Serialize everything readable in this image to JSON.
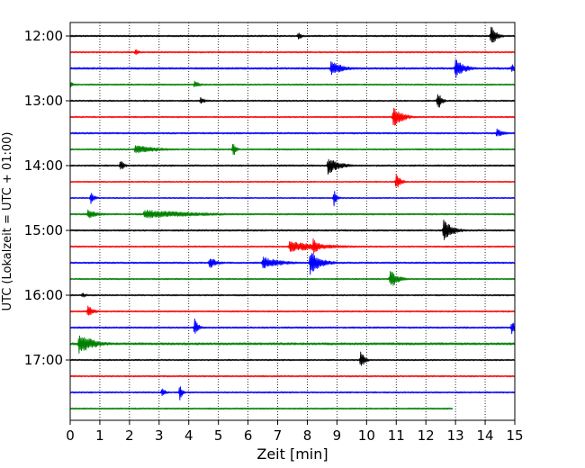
{
  "chart_data": {
    "type": "line",
    "subtype": "helicorder",
    "title": "",
    "xlabel": "Zeit  [min]",
    "ylabel": "UTC (Lokalzeit = UTC + 01:00)",
    "xlim": [
      0,
      15
    ],
    "x_ticks": [
      "0",
      "1",
      "2",
      "3",
      "4",
      "5",
      "6",
      "7",
      "8",
      "9",
      "10",
      "11",
      "12",
      "13",
      "14",
      "15"
    ],
    "y_tick_labels": [
      "12:00",
      "13:00",
      "14:00",
      "15:00",
      "16:00",
      "17:00"
    ],
    "grid": "vertical dotted lines at each minute",
    "line_colors": [
      "#000000",
      "#ff0000",
      "#0000ff",
      "#008000"
    ],
    "trace_start_times": [
      "12:00",
      "12:15",
      "12:30",
      "12:45",
      "13:00",
      "13:15",
      "13:30",
      "13:45",
      "14:00",
      "14:15",
      "14:30",
      "14:45",
      "15:00",
      "15:15",
      "15:30",
      "15:45",
      "16:00",
      "16:15",
      "16:30",
      "16:45",
      "17:00",
      "17:15",
      "17:30",
      "17:45"
    ],
    "trace_end_minutes": [
      15,
      15,
      15,
      15,
      15,
      15,
      15,
      15,
      15,
      15,
      15,
      15,
      15,
      15,
      15,
      15,
      15,
      15,
      15,
      15,
      15,
      15,
      15,
      12.9
    ],
    "noise_amplitude": [
      0.9,
      0.8,
      1.0,
      0.8,
      0.8,
      0.8,
      0.9,
      0.8,
      0.9,
      0.7,
      0.7,
      0.9,
      0.9,
      0.8,
      0.9,
      0.8,
      0.8,
      0.8,
      0.9,
      1.2,
      0.8,
      0.8,
      0.8,
      0.8
    ],
    "events": [
      {
        "trace": 0,
        "minute": 7.7,
        "amplitude": 6,
        "duration": 0.15
      },
      {
        "trace": 0,
        "minute": 14.2,
        "amplitude": 12,
        "duration": 0.3
      },
      {
        "trace": 1,
        "minute": 2.2,
        "amplitude": 4,
        "duration": 0.2
      },
      {
        "trace": 2,
        "minute": 8.8,
        "amplitude": 8,
        "duration": 0.7
      },
      {
        "trace": 2,
        "minute": 13.0,
        "amplitude": 11,
        "duration": 0.5
      },
      {
        "trace": 2,
        "minute": 14.9,
        "amplitude": 5,
        "duration": 0.2
      },
      {
        "trace": 3,
        "minute": 0.0,
        "amplitude": 5,
        "duration": 0.15
      },
      {
        "trace": 3,
        "minute": 4.2,
        "amplitude": 4,
        "duration": 0.3
      },
      {
        "trace": 4,
        "minute": 4.4,
        "amplitude": 4,
        "duration": 0.3
      },
      {
        "trace": 4,
        "minute": 12.4,
        "amplitude": 12,
        "duration": 0.2
      },
      {
        "trace": 5,
        "minute": 10.9,
        "amplitude": 12,
        "duration": 0.5
      },
      {
        "trace": 6,
        "minute": 14.4,
        "amplitude": 5,
        "duration": 0.4
      },
      {
        "trace": 7,
        "minute": 2.2,
        "amplitude": 5,
        "duration": 1.2
      },
      {
        "trace": 7,
        "minute": 5.5,
        "amplitude": 10,
        "duration": 0.15
      },
      {
        "trace": 8,
        "minute": 1.7,
        "amplitude": 7,
        "duration": 0.2
      },
      {
        "trace": 8,
        "minute": 8.7,
        "amplitude": 10,
        "duration": 0.6
      },
      {
        "trace": 9,
        "minute": 11.0,
        "amplitude": 9,
        "duration": 0.25
      },
      {
        "trace": 10,
        "minute": 0.7,
        "amplitude": 7,
        "duration": 0.2
      },
      {
        "trace": 10,
        "minute": 8.9,
        "amplitude": 10,
        "duration": 0.15
      },
      {
        "trace": 11,
        "minute": 0.6,
        "amplitude": 5,
        "duration": 0.6
      },
      {
        "trace": 11,
        "minute": 2.5,
        "amplitude": 5,
        "duration": 3.0
      },
      {
        "trace": 12,
        "minute": 12.6,
        "amplitude": 12,
        "duration": 0.5
      },
      {
        "trace": 13,
        "minute": 7.4,
        "amplitude": 6,
        "duration": 2.0
      },
      {
        "trace": 13,
        "minute": 8.2,
        "amplitude": 9,
        "duration": 0.4
      },
      {
        "trace": 14,
        "minute": 4.7,
        "amplitude": 7,
        "duration": 0.4
      },
      {
        "trace": 14,
        "minute": 6.5,
        "amplitude": 7,
        "duration": 1.0
      },
      {
        "trace": 14,
        "minute": 8.1,
        "amplitude": 13,
        "duration": 0.6
      },
      {
        "trace": 15,
        "minute": 10.8,
        "amplitude": 11,
        "duration": 0.4
      },
      {
        "trace": 16,
        "minute": 0.4,
        "amplitude": 3,
        "duration": 0.3
      },
      {
        "trace": 17,
        "minute": 0.6,
        "amplitude": 7,
        "duration": 0.3
      },
      {
        "trace": 18,
        "minute": 4.2,
        "amplitude": 10,
        "duration": 0.2
      },
      {
        "trace": 18,
        "minute": 14.9,
        "amplitude": 9,
        "duration": 0.2
      },
      {
        "trace": 19,
        "minute": 0.3,
        "amplitude": 12,
        "duration": 0.8
      },
      {
        "trace": 20,
        "minute": 9.8,
        "amplitude": 12,
        "duration": 0.2
      },
      {
        "trace": 22,
        "minute": 3.1,
        "amplitude": 5,
        "duration": 0.2
      },
      {
        "trace": 22,
        "minute": 3.7,
        "amplitude": 9,
        "duration": 0.15
      }
    ]
  }
}
